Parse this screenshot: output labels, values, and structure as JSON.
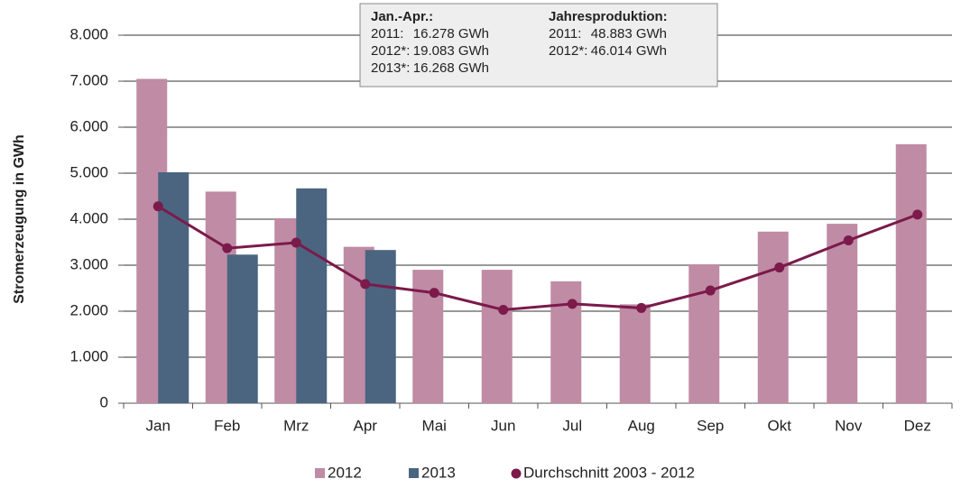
{
  "chart_data": {
    "type": "bar",
    "y_label": "Stromerzeugung in GWh",
    "categories": [
      "Jan",
      "Feb",
      "Mrz",
      "Apr",
      "Mai",
      "Jun",
      "Jul",
      "Aug",
      "Sep",
      "Okt",
      "Nov",
      "Dez"
    ],
    "series": [
      {
        "name": "2012",
        "type": "bar",
        "color": "#c08ba4",
        "values": [
          7050,
          4600,
          4020,
          3400,
          2900,
          2900,
          2650,
          2150,
          3020,
          3730,
          3900,
          5630
        ]
      },
      {
        "name": "2013",
        "type": "bar",
        "color": "#4b6580",
        "values": [
          5020,
          3230,
          4670,
          3330,
          null,
          null,
          null,
          null,
          null,
          null,
          null,
          null
        ]
      },
      {
        "name": "Durchschnitt 2003 - 2012",
        "type": "line",
        "color": "#7b1a4b",
        "values": [
          4280,
          3370,
          3490,
          2590,
          2400,
          2030,
          2160,
          2070,
          2450,
          2950,
          3540,
          4100
        ]
      }
    ],
    "ylim": [
      0,
      8000
    ],
    "yticks": [
      0,
      {
        "value": 1000,
        "label": "1.000"
      },
      {
        "value": 2000,
        "label": "2.000"
      },
      {
        "value": 3000,
        "label": "3.000"
      },
      {
        "value": 4000,
        "label": "4.000"
      },
      {
        "value": 5000,
        "label": "5.000"
      },
      {
        "value": 6000,
        "label": "6.000"
      },
      {
        "value": 7000,
        "label": "7.000"
      },
      {
        "value": 8000,
        "label": "8.000"
      }
    ],
    "grid": true,
    "legend": "bottom",
    "annotation": {
      "left": {
        "heading": "Jan.-Apr.:",
        "rows": [
          [
            "2011:",
            "16.278 GWh"
          ],
          [
            "2012*:",
            "19.083 GWh"
          ],
          [
            "2013*:",
            "16.268 GWh"
          ]
        ]
      },
      "right": {
        "heading": "Jahresproduktion:",
        "rows": [
          [
            "2011:",
            "48.883 GWh"
          ],
          [
            "2012*:",
            "46.014 GWh"
          ]
        ]
      }
    }
  }
}
